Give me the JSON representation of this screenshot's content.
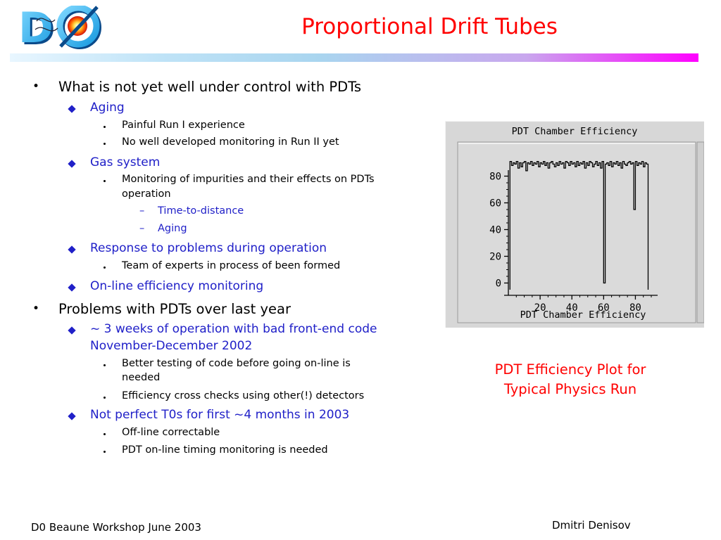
{
  "header": {
    "logo_text": "DØ",
    "title": "Proportional Drift Tubes"
  },
  "bullets": [
    {
      "level": 1,
      "text": "What is not yet well under control with PDTs"
    },
    {
      "level": 2,
      "text": "Aging"
    },
    {
      "level": 3,
      "text": "Painful Run I experience"
    },
    {
      "level": 3,
      "text": "No well developed monitoring in Run II yet"
    },
    {
      "level": 2,
      "text": "Gas system"
    },
    {
      "level": 3,
      "text": "Monitoring of impurities and their effects on PDTs"
    },
    {
      "level": 0,
      "text": "operation"
    },
    {
      "level": 4,
      "text": "Time-to-distance"
    },
    {
      "level": 4,
      "text": "Aging"
    },
    {
      "level": 2,
      "text": "Response to problems during operation"
    },
    {
      "level": 3,
      "text": "Team of experts in process of been formed"
    },
    {
      "level": 2,
      "text": "On-line efficiency monitoring"
    },
    {
      "level": 1,
      "text": "Problems with PDTs over last year"
    },
    {
      "level": 2,
      "text": "~ 3 weeks of operation with bad front-end code"
    },
    {
      "level": 5,
      "text": "November-December 2002"
    },
    {
      "level": 3,
      "text": "Better testing of code before going on-line is"
    },
    {
      "level": 0,
      "text": "needed"
    },
    {
      "level": 3,
      "text": "Efficiency cross checks using other(!) detectors"
    },
    {
      "level": 2,
      "text": "Not perfect T0s for first ~4 months in 2003"
    },
    {
      "level": 3,
      "text": "Off-line correctable"
    },
    {
      "level": 3,
      "text": "PDT on-line timing monitoring is needed"
    }
  ],
  "chart_data": {
    "type": "line",
    "title": "PDT Chamber Efficiency",
    "xlabel": "PDT Chamber Efficiency",
    "ylabel": "",
    "xlim": [
      0,
      94
    ],
    "ylim": [
      -5,
      95
    ],
    "x_ticks": [
      20,
      40,
      60,
      80
    ],
    "y_ticks": [
      0,
      20,
      40,
      60,
      80
    ],
    "series": [
      {
        "values": [
          91,
          88,
          90,
          89,
          91,
          86,
          90,
          87,
          90,
          91,
          84,
          90,
          89,
          91,
          88,
          90,
          89,
          91,
          87,
          90,
          89,
          91,
          88,
          90,
          86,
          90,
          91,
          89,
          87,
          90,
          88,
          91,
          89,
          90,
          86,
          91,
          90,
          88,
          91,
          89,
          90,
          87,
          91,
          88,
          90,
          89,
          91,
          86,
          90,
          88,
          91,
          90,
          87,
          89,
          91,
          88,
          90,
          86,
          91,
          0,
          89,
          90,
          88,
          91,
          87,
          90,
          89,
          91,
          88,
          90,
          86,
          91,
          89,
          88,
          90,
          91,
          89,
          90,
          55,
          91,
          88,
          90,
          89,
          91,
          87,
          90,
          89
        ]
      }
    ]
  },
  "caption": {
    "line1": "PDT Efficiency Plot for",
    "line2": "Typical Physics Run"
  },
  "footer": {
    "left": "D0 Beaune Workshop June 2003",
    "right": "Dmitri Denisov"
  },
  "colors": {
    "title": "#ff0000",
    "sub_bullet": "#2020c8",
    "caption": "#ff0000"
  }
}
